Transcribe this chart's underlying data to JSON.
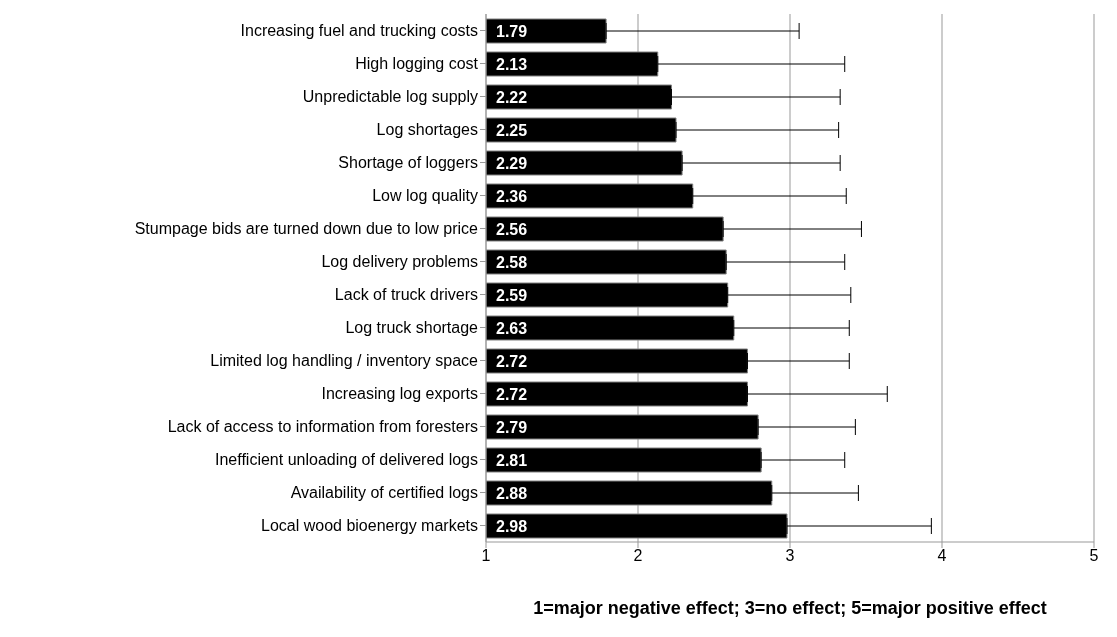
{
  "chart_data": {
    "type": "bar",
    "orientation": "horizontal",
    "xlabel": "1=major negative effect; 3=no effect; 5=major positive effect",
    "categories": [
      "Increasing fuel and trucking costs",
      "High logging cost",
      "Unpredictable log supply",
      "Log shortages",
      "Shortage of loggers",
      "Low log quality",
      "Stumpage bids are turned down due to low price",
      "Log delivery problems",
      "Lack of truck drivers",
      "Log truck shortage",
      "Limited log handling /  inventory space",
      "Increasing log exports",
      "Lack of access to information from foresters",
      "Inefficient unloading of delivered logs",
      "Availability of certified logs",
      "Local wood bioenergy markets"
    ],
    "values": [
      1.79,
      2.13,
      2.22,
      2.25,
      2.29,
      2.36,
      2.56,
      2.58,
      2.59,
      2.63,
      2.72,
      2.72,
      2.79,
      2.81,
      2.88,
      2.98
    ],
    "errors": [
      1.27,
      1.23,
      1.11,
      1.07,
      1.04,
      1.01,
      0.91,
      0.78,
      0.81,
      0.76,
      0.67,
      0.92,
      0.64,
      0.55,
      0.57,
      0.95
    ],
    "color": "#000000",
    "xlim": [
      1,
      5
    ],
    "xticks": [
      1,
      2,
      3,
      4,
      5
    ],
    "grid": "x",
    "data_labels": true
  }
}
